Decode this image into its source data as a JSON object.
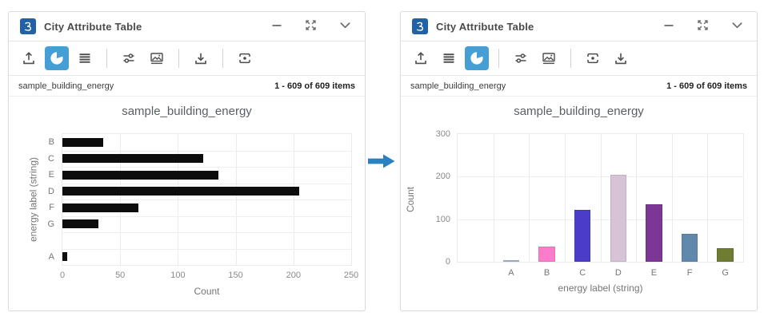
{
  "panels": [
    {
      "window_title": "City Attribute Table",
      "toolbar": [
        {
          "icon": "upload-icon"
        },
        {
          "icon": "pie-chart-icon",
          "active": true
        },
        {
          "icon": "list-icon"
        },
        {
          "separator": true
        },
        {
          "icon": "sliders-icon"
        },
        {
          "icon": "image-icon"
        },
        {
          "separator": true
        },
        {
          "icon": "download-icon"
        },
        {
          "separator": true
        },
        {
          "icon": "focus-icon"
        }
      ],
      "status": {
        "layer": "sample_building_energy",
        "items": "1 - 609 of 609 items"
      }
    },
    {
      "window_title": "City Attribute Table",
      "toolbar": [
        {
          "icon": "upload-icon"
        },
        {
          "icon": "list-icon"
        },
        {
          "icon": "pie-chart-icon",
          "active": true
        },
        {
          "separator": true
        },
        {
          "icon": "sliders-icon"
        },
        {
          "icon": "image-icon"
        },
        {
          "separator": true
        },
        {
          "icon": "focus-icon"
        },
        {
          "icon": "download-icon"
        }
      ],
      "status": {
        "layer": "sample_building_energy",
        "items": "1 - 609 of 609 items"
      }
    }
  ],
  "arrow": {
    "name": "transform-arrow",
    "color": "#2b80bf"
  },
  "colors": {
    "accent_active_button": "#459fd6",
    "logo_blue": "#2062a5",
    "bar_black": "#0d0d0d",
    "grid": "#ebebeb"
  },
  "chart_data": [
    {
      "type": "bar",
      "orientation": "horizontal",
      "title": "sample_building_energy",
      "xlabel": "Count",
      "ylabel": "energy label (string)",
      "categories": [
        "B",
        "C",
        "E",
        "D",
        "F",
        "G",
        "",
        "A"
      ],
      "values": [
        35,
        122,
        135,
        205,
        66,
        31,
        0,
        4
      ],
      "xlim": [
        0,
        250
      ],
      "xticks": [
        0,
        50,
        100,
        150,
        200,
        250
      ],
      "bar_color": "#0d0d0d",
      "grid": true,
      "legend": false
    },
    {
      "type": "bar",
      "orientation": "vertical",
      "title": "sample_building_energy",
      "xlabel": "energy label (string)",
      "ylabel": "Count",
      "categories": [
        "",
        "A",
        "B",
        "C",
        "D",
        "E",
        "F",
        "G"
      ],
      "values": [
        0,
        4,
        35,
        122,
        205,
        135,
        66,
        31
      ],
      "ylim": [
        0,
        300
      ],
      "yticks": [
        0,
        100,
        200,
        300
      ],
      "bar_colors": [
        "transparent",
        "#a7bdd3",
        "#fc7ccc",
        "#4a3ec9",
        "#d6c4d6",
        "#7c3796",
        "#6089ad",
        "#6f7d33"
      ],
      "grid": true,
      "legend": false
    }
  ]
}
